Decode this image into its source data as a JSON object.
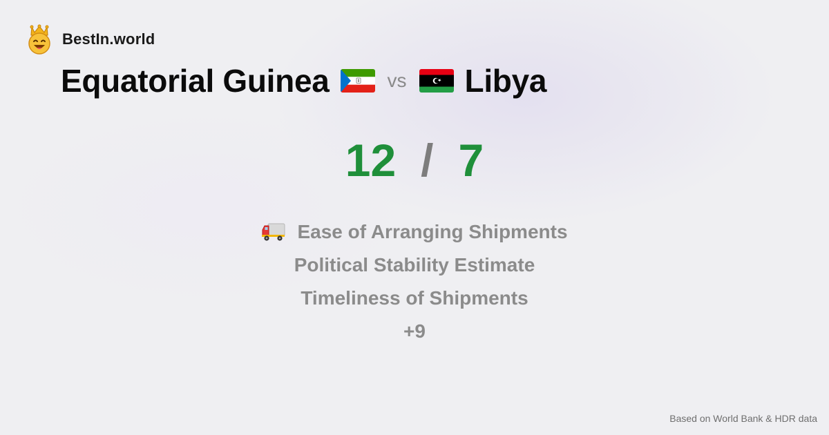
{
  "brand": {
    "name": "BestIn.world",
    "logo_icon": "crown-smiley-icon"
  },
  "comparison": {
    "country_a": "Equatorial Guinea",
    "country_b": "Libya",
    "vs_label": "vs",
    "flag_a_icon": "equatorial-guinea-flag-icon",
    "flag_b_icon": "libya-flag-icon"
  },
  "score": {
    "a": "12",
    "separator": "/",
    "b": "7"
  },
  "categories": [
    {
      "label": "Ease of Arranging Shipments",
      "icon": "delivery-truck-icon"
    },
    {
      "label": "Political Stability Estimate"
    },
    {
      "label": "Timeliness of Shipments"
    }
  ],
  "more_label": "+9",
  "source": "Based on World Bank & HDR data",
  "colors": {
    "score_green": "#1f8f3a",
    "muted_gray": "#8b8b8b",
    "background": "#efeff2"
  }
}
